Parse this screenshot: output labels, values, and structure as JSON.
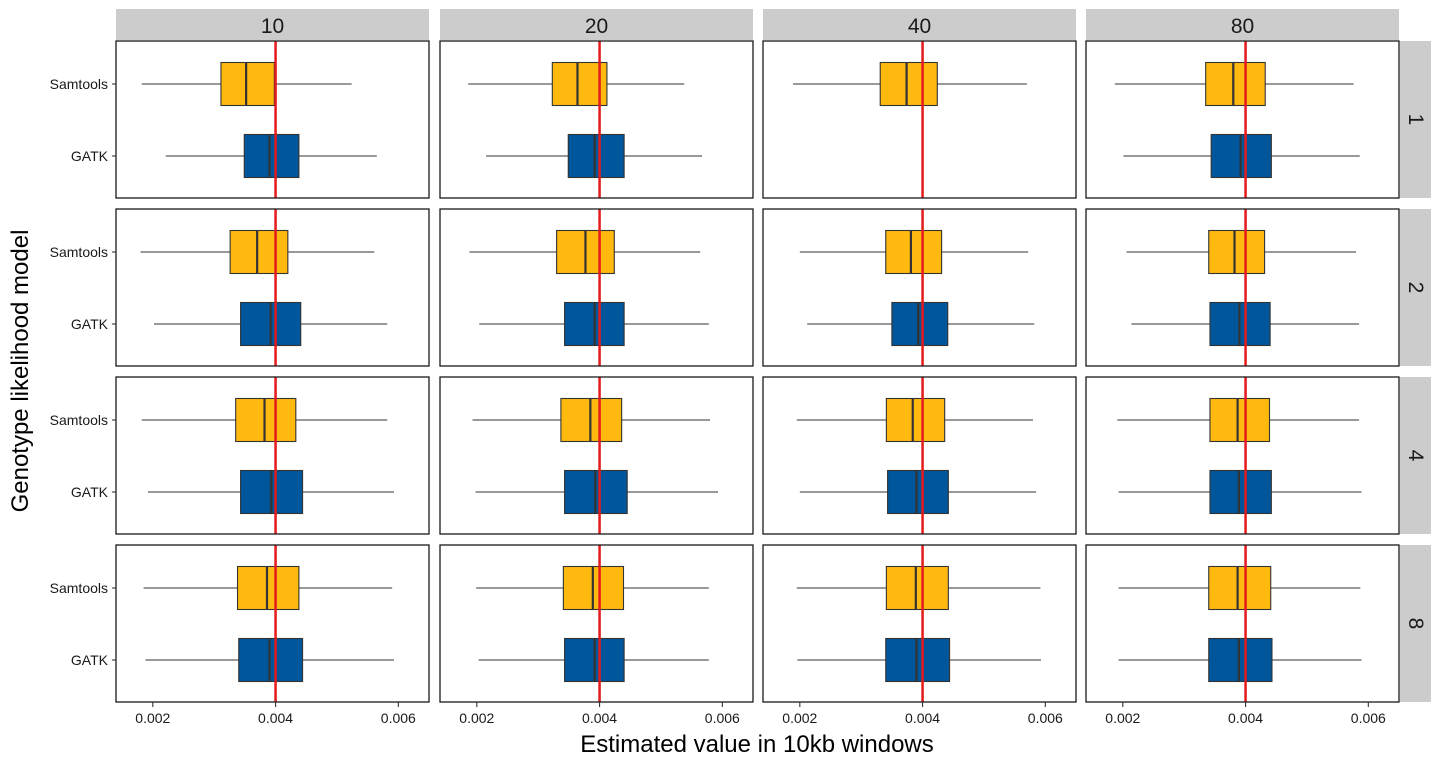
{
  "chart_data": {
    "type": "box",
    "xlabel": "Estimated value in 10kb windows",
    "ylabel": "Genotype likelihood model",
    "x_ticks": [
      0.002,
      0.004,
      0.006
    ],
    "x_tick_labels": [
      "0.002",
      "0.004",
      "0.006"
    ],
    "xlim": [
      0.0014,
      0.0065
    ],
    "reference_line": 0.004,
    "reference_line_color": "#e41a1c",
    "categories": [
      "Samtools",
      "GATK"
    ],
    "category_colors": {
      "Samtools": "#ffb90f",
      "GATK": "#00569b"
    },
    "col_facets": [
      "10",
      "20",
      "40",
      "80"
    ],
    "row_facets": [
      "1",
      "2",
      "4",
      "8"
    ],
    "panels": [
      {
        "row": "1",
        "col": "10",
        "boxes": [
          {
            "category": "Samtools",
            "whisker_low": 0.00182,
            "q1": 0.00311,
            "median": 0.00352,
            "q3": 0.00398,
            "whisker_high": 0.00524
          },
          {
            "category": "GATK",
            "whisker_low": 0.00221,
            "q1": 0.00349,
            "median": 0.0039,
            "q3": 0.00438,
            "whisker_high": 0.00565
          }
        ]
      },
      {
        "row": "1",
        "col": "20",
        "boxes": [
          {
            "category": "Samtools",
            "whisker_low": 0.00186,
            "q1": 0.00323,
            "median": 0.00364,
            "q3": 0.00412,
            "whisker_high": 0.00538
          },
          {
            "category": "GATK",
            "whisker_low": 0.00215,
            "q1": 0.00349,
            "median": 0.00392,
            "q3": 0.0044,
            "whisker_high": 0.00567
          }
        ]
      },
      {
        "row": "1",
        "col": "40",
        "boxes": [
          {
            "category": "Samtools",
            "whisker_low": 0.00189,
            "q1": 0.00331,
            "median": 0.00374,
            "q3": 0.00424,
            "whisker_high": 0.0057
          }
        ],
        "_note": ""
      },
      {
        "row": "1",
        "col": "80",
        "boxes": [
          {
            "category": "Samtools",
            "whisker_low": 0.00187,
            "q1": 0.00335,
            "median": 0.0038,
            "q3": 0.00432,
            "whisker_high": 0.00576
          },
          {
            "category": "GATK",
            "whisker_low": 0.00201,
            "q1": 0.00344,
            "median": 0.00392,
            "q3": 0.00442,
            "whisker_high": 0.00586
          }
        ]
      },
      {
        "row": "2",
        "col": "10",
        "boxes": [
          {
            "category": "Samtools",
            "whisker_low": 0.0018,
            "q1": 0.00326,
            "median": 0.0037,
            "q3": 0.0042,
            "whisker_high": 0.00561
          },
          {
            "category": "GATK",
            "whisker_low": 0.00202,
            "q1": 0.00343,
            "median": 0.00392,
            "q3": 0.00441,
            "whisker_high": 0.00582
          }
        ]
      },
      {
        "row": "2",
        "col": "20",
        "boxes": [
          {
            "category": "Samtools",
            "whisker_low": 0.00188,
            "q1": 0.0033,
            "median": 0.00377,
            "q3": 0.00424,
            "whisker_high": 0.00564
          },
          {
            "category": "GATK",
            "whisker_low": 0.00204,
            "q1": 0.00343,
            "median": 0.00392,
            "q3": 0.0044,
            "whisker_high": 0.00578
          }
        ]
      },
      {
        "row": "2",
        "col": "40",
        "boxes": [
          {
            "category": "Samtools",
            "whisker_low": 0.002,
            "q1": 0.0034,
            "median": 0.00381,
            "q3": 0.00431,
            "whisker_high": 0.00572
          },
          {
            "category": "GATK",
            "whisker_low": 0.00212,
            "q1": 0.0035,
            "median": 0.00393,
            "q3": 0.00441,
            "whisker_high": 0.00582
          }
        ]
      },
      {
        "row": "2",
        "col": "80",
        "boxes": [
          {
            "category": "Samtools",
            "whisker_low": 0.00206,
            "q1": 0.0034,
            "median": 0.00382,
            "q3": 0.00431,
            "whisker_high": 0.0058
          },
          {
            "category": "GATK",
            "whisker_low": 0.00214,
            "q1": 0.00342,
            "median": 0.0039,
            "q3": 0.0044,
            "whisker_high": 0.00585
          }
        ]
      },
      {
        "row": "4",
        "col": "10",
        "boxes": [
          {
            "category": "Samtools",
            "whisker_low": 0.00182,
            "q1": 0.00335,
            "median": 0.00382,
            "q3": 0.00433,
            "whisker_high": 0.00582
          },
          {
            "category": "GATK",
            "whisker_low": 0.00192,
            "q1": 0.00343,
            "median": 0.00393,
            "q3": 0.00444,
            "whisker_high": 0.00593
          }
        ]
      },
      {
        "row": "4",
        "col": "20",
        "boxes": [
          {
            "category": "Samtools",
            "whisker_low": 0.00193,
            "q1": 0.00337,
            "median": 0.00385,
            "q3": 0.00436,
            "whisker_high": 0.0058
          },
          {
            "category": "GATK",
            "whisker_low": 0.00198,
            "q1": 0.00343,
            "median": 0.00393,
            "q3": 0.00445,
            "whisker_high": 0.00593
          }
        ]
      },
      {
        "row": "4",
        "col": "40",
        "boxes": [
          {
            "category": "Samtools",
            "whisker_low": 0.00195,
            "q1": 0.00341,
            "median": 0.00384,
            "q3": 0.00436,
            "whisker_high": 0.0058
          },
          {
            "category": "GATK",
            "whisker_low": 0.002,
            "q1": 0.00343,
            "median": 0.0039,
            "q3": 0.00442,
            "whisker_high": 0.00585
          }
        ]
      },
      {
        "row": "4",
        "col": "80",
        "boxes": [
          {
            "category": "Samtools",
            "whisker_low": 0.00191,
            "q1": 0.00342,
            "median": 0.00387,
            "q3": 0.00439,
            "whisker_high": 0.00585
          },
          {
            "category": "GATK",
            "whisker_low": 0.00193,
            "q1": 0.00342,
            "median": 0.00389,
            "q3": 0.00442,
            "whisker_high": 0.00589
          }
        ]
      },
      {
        "row": "8",
        "col": "10",
        "boxes": [
          {
            "category": "Samtools",
            "whisker_low": 0.00185,
            "q1": 0.00338,
            "median": 0.00386,
            "q3": 0.00438,
            "whisker_high": 0.0059
          },
          {
            "category": "GATK",
            "whisker_low": 0.00188,
            "q1": 0.0034,
            "median": 0.0039,
            "q3": 0.00444,
            "whisker_high": 0.00593
          }
        ]
      },
      {
        "row": "8",
        "col": "20",
        "boxes": [
          {
            "category": "Samtools",
            "whisker_low": 0.00199,
            "q1": 0.00341,
            "median": 0.00389,
            "q3": 0.00439,
            "whisker_high": 0.00578
          },
          {
            "category": "GATK",
            "whisker_low": 0.00203,
            "q1": 0.00343,
            "median": 0.00392,
            "q3": 0.0044,
            "whisker_high": 0.00578
          }
        ]
      },
      {
        "row": "8",
        "col": "40",
        "boxes": [
          {
            "category": "Samtools",
            "whisker_low": 0.00195,
            "q1": 0.00341,
            "median": 0.00389,
            "q3": 0.00442,
            "whisker_high": 0.00592
          },
          {
            "category": "GATK",
            "whisker_low": 0.00196,
            "q1": 0.0034,
            "median": 0.0039,
            "q3": 0.00444,
            "whisker_high": 0.00593
          }
        ]
      },
      {
        "row": "8",
        "col": "80",
        "boxes": [
          {
            "category": "Samtools",
            "whisker_low": 0.00193,
            "q1": 0.0034,
            "median": 0.00387,
            "q3": 0.00441,
            "whisker_high": 0.00587
          },
          {
            "category": "GATK",
            "whisker_low": 0.00193,
            "q1": 0.0034,
            "median": 0.00389,
            "q3": 0.00443,
            "whisker_high": 0.00589
          }
        ]
      }
    ],
    "grid": false,
    "legend": "none"
  }
}
